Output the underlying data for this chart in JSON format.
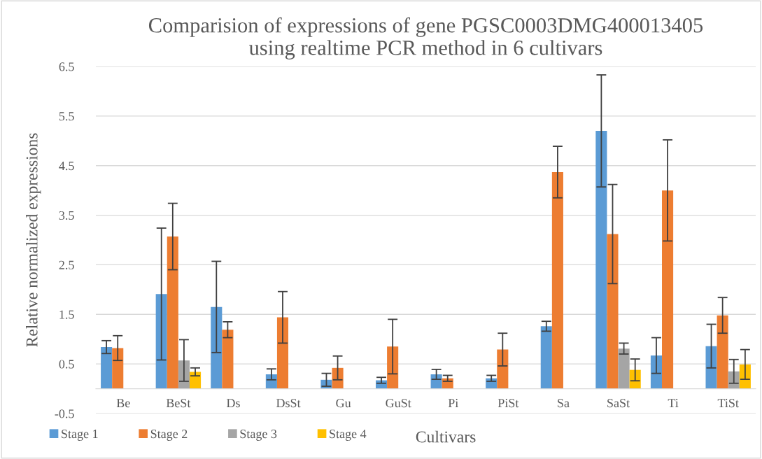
{
  "chart_data": {
    "type": "bar",
    "title": "Comparision of expressions of gene PGSC0003DMG400013405\nusing realtime PCR method in 6 cultivars",
    "xlabel": "Cultivars",
    "ylabel": "Relative normalized expressions",
    "categories": [
      "Be",
      "BeSt",
      "Ds",
      "DsSt",
      "Gu",
      "GuSt",
      "Pi",
      "PiSt",
      "Sa",
      "SaSt",
      "Ti",
      "TiSt"
    ],
    "series": [
      {
        "name": "Stage 1",
        "color": "#5b9bd5",
        "values": [
          0.84,
          1.91,
          1.65,
          0.29,
          0.18,
          0.17,
          0.29,
          0.21,
          1.26,
          5.2,
          0.67,
          0.86
        ],
        "errors": [
          0.13,
          1.33,
          0.92,
          0.11,
          0.13,
          0.06,
          0.1,
          0.06,
          0.1,
          1.13,
          0.36,
          0.44
        ]
      },
      {
        "name": "Stage 2",
        "color": "#ed7d31",
        "values": [
          0.82,
          3.07,
          1.19,
          1.44,
          0.42,
          0.85,
          0.21,
          0.79,
          4.37,
          3.12,
          4.0,
          1.48
        ],
        "errors": [
          0.25,
          0.67,
          0.16,
          0.52,
          0.24,
          0.55,
          0.06,
          0.33,
          0.52,
          1.0,
          1.02,
          0.36
        ]
      },
      {
        "name": "Stage 3",
        "color": "#a5a5a5",
        "values": [
          null,
          0.57,
          null,
          null,
          null,
          null,
          null,
          null,
          null,
          0.81,
          null,
          0.35
        ],
        "errors": [
          null,
          0.42,
          null,
          null,
          null,
          null,
          null,
          null,
          null,
          0.11,
          null,
          0.24
        ]
      },
      {
        "name": "Stage 4",
        "color": "#ffc000",
        "values": [
          null,
          0.34,
          null,
          null,
          null,
          null,
          null,
          null,
          null,
          0.38,
          null,
          0.49
        ],
        "errors": [
          null,
          0.08,
          null,
          null,
          null,
          null,
          null,
          null,
          null,
          0.22,
          null,
          0.3
        ]
      }
    ],
    "ylim": [
      -0.5,
      6.5
    ],
    "yticks": [
      -0.5,
      0.5,
      1.5,
      2.5,
      3.5,
      4.5,
      5.5,
      6.5
    ],
    "grid": "y",
    "legend": "bottom"
  }
}
